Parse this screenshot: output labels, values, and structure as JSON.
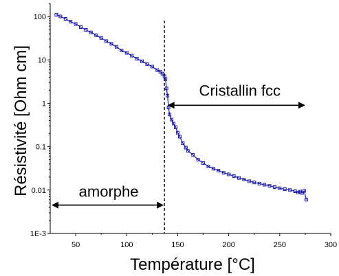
{
  "chart_data": {
    "type": "scatter",
    "title": "",
    "xlabel": "Température [°C]",
    "ylabel": "Résistivité [Ohm cm]",
    "xlim": [
      25,
      300
    ],
    "ylim": [
      0.001,
      200
    ],
    "y_scale": "log",
    "x_ticks": [
      50,
      100,
      150,
      200,
      250,
      300
    ],
    "x_tick_labels": [
      "50",
      "100",
      "150",
      "200",
      "250",
      "300"
    ],
    "y_ticks": [
      0.001,
      0.01,
      0.1,
      1,
      10,
      100
    ],
    "y_tick_labels": [
      "1E-3",
      "0.01",
      "0.1",
      "1",
      "10",
      "100"
    ],
    "grid": false,
    "legend": "none",
    "series": [
      {
        "color": "#1a1aa6",
        "marker": "open-square",
        "x": [
          31,
          35,
          40,
          45,
          50,
          55,
          60,
          65,
          70,
          75,
          80,
          85,
          90,
          95,
          100,
          105,
          110,
          115,
          120,
          125,
          130,
          133,
          135,
          137,
          138,
          139,
          140,
          141,
          142,
          144,
          146,
          148,
          150,
          152,
          155,
          158,
          160,
          165,
          170,
          175,
          180,
          185,
          190,
          195,
          200,
          205,
          210,
          215,
          220,
          225,
          230,
          235,
          240,
          245,
          250,
          255,
          260,
          265,
          268,
          270,
          272,
          274,
          276
        ],
        "y": [
          110,
          100,
          88,
          76,
          67,
          57,
          49,
          43,
          37,
          32,
          27,
          23.5,
          20,
          16.5,
          14.5,
          12.5,
          10.6,
          9.3,
          8,
          7,
          5.8,
          5.3,
          4.8,
          4.2,
          3.6,
          2.2,
          1.5,
          0.8,
          0.55,
          0.42,
          0.34,
          0.28,
          0.21,
          0.17,
          0.12,
          0.095,
          0.08,
          0.065,
          0.05,
          0.042,
          0.035,
          0.031,
          0.028,
          0.025,
          0.023,
          0.021,
          0.019,
          0.0175,
          0.016,
          0.015,
          0.014,
          0.0133,
          0.0125,
          0.0117,
          0.011,
          0.0105,
          0.01,
          0.0094,
          0.0088,
          0.0092,
          0.0086,
          0.0096,
          0.006
        ]
      }
    ],
    "annotations": {
      "vline_x": 137,
      "amorphous_label": "amorphe",
      "amorphous_range": [
        25,
        137
      ],
      "amorphous_y": 0.0045,
      "crystalline_label": "Cristallin fcc",
      "crystalline_range": [
        140,
        275
      ],
      "crystalline_y": 0.9
    }
  }
}
